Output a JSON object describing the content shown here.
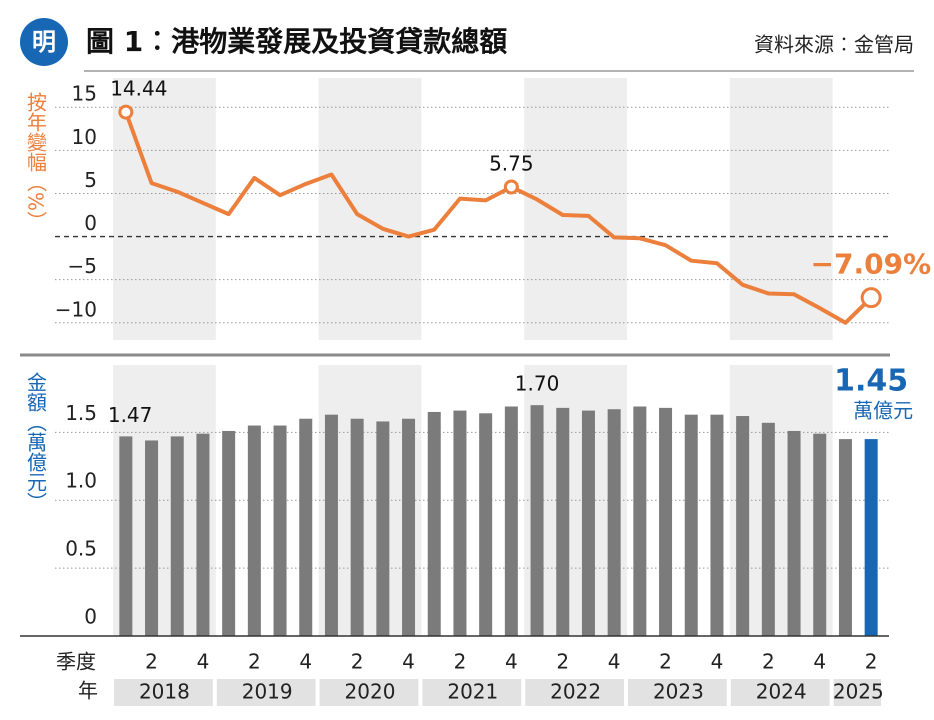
{
  "logo": "明",
  "title": "圖 1︰港物業發展及投資貸款總額",
  "source": "資料來源︰金管局",
  "chart_data": [
    {
      "type": "line",
      "ylabel": "按年變幅（%）",
      "values": [
        14.44,
        6.2,
        5.2,
        3.9,
        2.6,
        6.8,
        4.8,
        6.1,
        7.2,
        2.6,
        0.9,
        0,
        0.8,
        4.4,
        4.2,
        5.75,
        4.3,
        2.5,
        2.4,
        -0.1,
        -0.2,
        -1.0,
        -2.8,
        -3.1,
        -5.6,
        -6.6,
        -6.7,
        -8.3,
        -10.0,
        -7.09
      ],
      "value_labels": [
        "14.44",
        null,
        null,
        null,
        null,
        null,
        null,
        null,
        null,
        null,
        null,
        null,
        null,
        null,
        null,
        "5.75",
        null,
        null,
        null,
        null,
        null,
        null,
        null,
        null,
        null,
        null,
        null,
        null,
        null,
        "−7.09%"
      ],
      "color": "#ec7f3c",
      "ylim": [
        -12,
        17
      ],
      "yticks": [
        {
          "value": -10,
          "label": "−10"
        },
        {
          "value": -5,
          "label": "−5"
        },
        0,
        5,
        10,
        15
      ],
      "grid": true
    },
    {
      "type": "bar",
      "ylabel": "金額（萬億元）",
      "xlabel": "季度",
      "year_label": "年",
      "categories": [
        null,
        "2",
        null,
        "4",
        null,
        "2",
        null,
        "4",
        null,
        "2",
        null,
        "4",
        null,
        "2",
        null,
        "4",
        null,
        "2",
        null,
        "4",
        null,
        "2",
        null,
        "4",
        null,
        "2",
        null,
        "4",
        null,
        "2"
      ],
      "years": [
        "2018",
        "2019",
        "2020",
        "2021",
        "2022",
        "2023",
        "2024",
        "2025"
      ],
      "values": [
        1.47,
        1.44,
        1.47,
        1.49,
        1.51,
        1.55,
        1.55,
        1.6,
        1.63,
        1.6,
        1.58,
        1.6,
        1.65,
        1.66,
        1.64,
        1.69,
        1.7,
        1.68,
        1.66,
        1.67,
        1.69,
        1.68,
        1.63,
        1.63,
        1.62,
        1.57,
        1.51,
        1.49,
        1.45,
        1.45
      ],
      "value_labels": [
        "1.47",
        null,
        null,
        null,
        null,
        null,
        null,
        null,
        null,
        null,
        null,
        null,
        null,
        null,
        null,
        null,
        "1.70",
        null,
        null,
        null,
        null,
        null,
        null,
        null,
        null,
        null,
        null,
        null,
        null,
        "1.45"
      ],
      "unit_label": "萬億元",
      "color": "#7b7b7b",
      "highlight_color": "#1867b4",
      "highlight_index": 29,
      "ylim": [
        0,
        1.9
      ],
      "yticks": [
        0,
        0.5,
        {
          "value": 1,
          "label": "1.0"
        },
        1.5
      ],
      "grid": true
    }
  ]
}
